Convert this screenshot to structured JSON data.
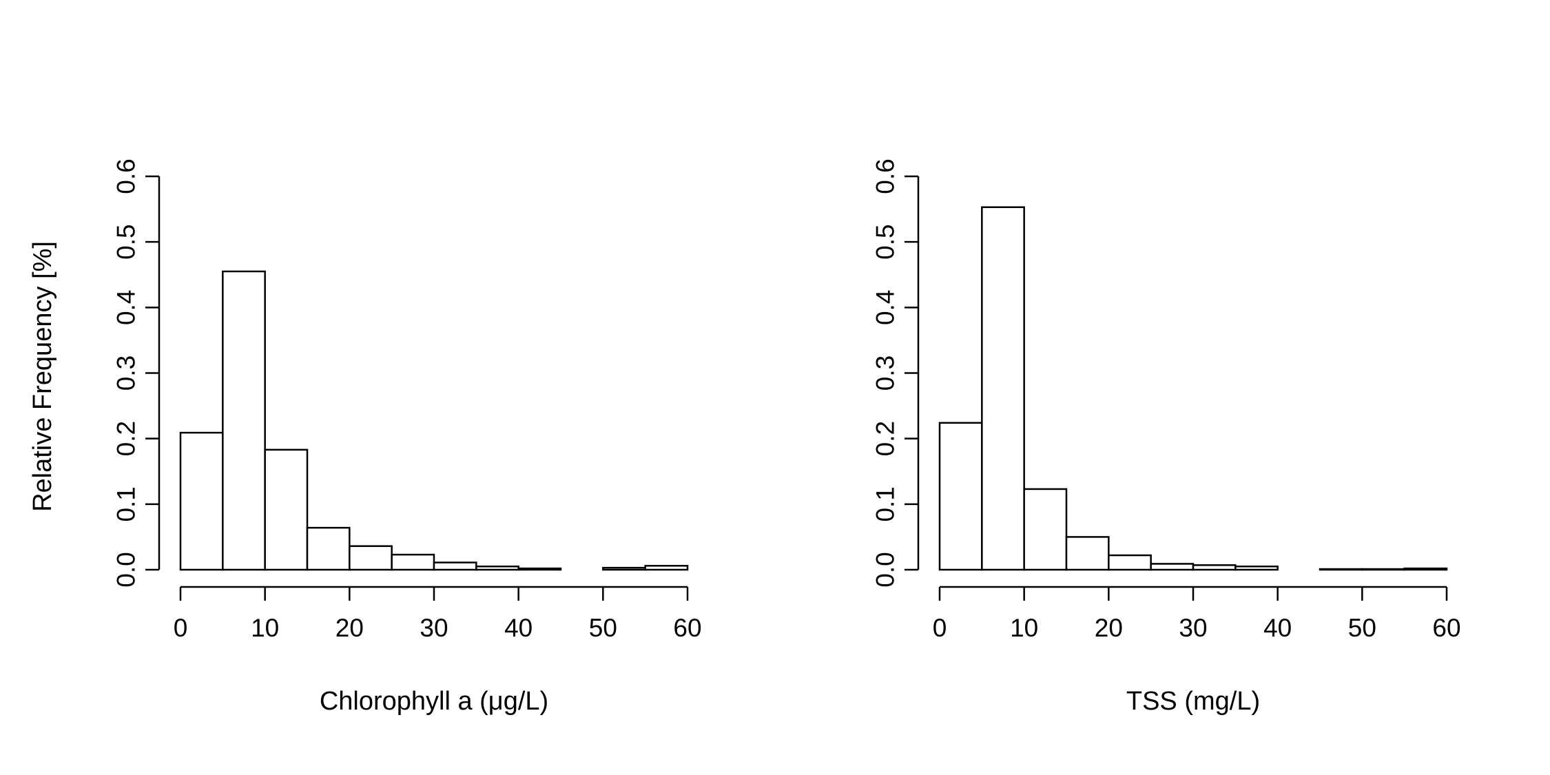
{
  "chart_data": [
    {
      "type": "bar",
      "title": "",
      "xlabel": "Chlorophyll a (μg/L)",
      "ylabel": "Relative Frequency [%]",
      "xlim": [
        0,
        60
      ],
      "ylim": [
        0,
        0.6
      ],
      "x_ticks": [
        "0",
        "10",
        "20",
        "30",
        "40",
        "50",
        "60"
      ],
      "y_ticks": [
        "0.0",
        "0.1",
        "0.2",
        "0.3",
        "0.4",
        "0.5",
        "0.6"
      ],
      "bins": [
        [
          0,
          5
        ],
        [
          5,
          10
        ],
        [
          10,
          15
        ],
        [
          15,
          20
        ],
        [
          20,
          25
        ],
        [
          25,
          30
        ],
        [
          30,
          35
        ],
        [
          35,
          40
        ],
        [
          40,
          45
        ],
        [
          45,
          50
        ],
        [
          50,
          55
        ],
        [
          55,
          60
        ]
      ],
      "values": [
        0.209,
        0.455,
        0.183,
        0.064,
        0.036,
        0.023,
        0.011,
        0.005,
        0.002,
        0.0,
        0.003,
        0.006
      ],
      "grid": false
    },
    {
      "type": "bar",
      "title": "",
      "xlabel": "TSS (mg/L)",
      "ylabel": "",
      "xlim": [
        0,
        60
      ],
      "ylim": [
        0,
        0.6
      ],
      "x_ticks": [
        "0",
        "10",
        "20",
        "30",
        "40",
        "50",
        "60"
      ],
      "y_ticks": [
        "0.0",
        "0.1",
        "0.2",
        "0.3",
        "0.4",
        "0.5",
        "0.6"
      ],
      "bins": [
        [
          0,
          5
        ],
        [
          5,
          10
        ],
        [
          10,
          15
        ],
        [
          15,
          20
        ],
        [
          20,
          25
        ],
        [
          25,
          30
        ],
        [
          30,
          35
        ],
        [
          35,
          40
        ],
        [
          40,
          45
        ],
        [
          45,
          50
        ],
        [
          50,
          55
        ],
        [
          55,
          60
        ]
      ],
      "values": [
        0.224,
        0.553,
        0.123,
        0.05,
        0.022,
        0.009,
        0.007,
        0.005,
        0.0,
        0.001,
        0.001,
        0.002
      ],
      "grid": false
    }
  ]
}
